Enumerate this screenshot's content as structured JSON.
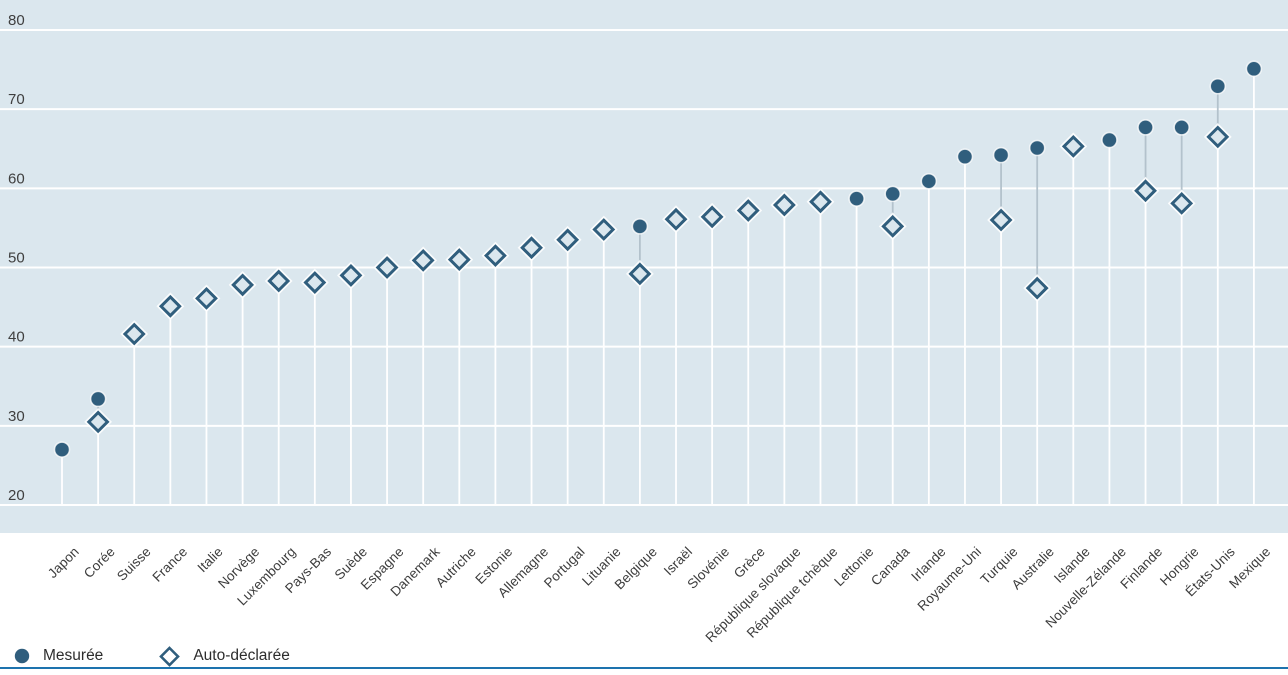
{
  "colors": {
    "marker": "#305e7d",
    "plot_background": "#dbe7ee",
    "gridline": "#ffffff",
    "connector": "#b3c2cc",
    "axis_text": "#3f3f3f",
    "bottom_rule": "#1d73ae"
  },
  "legend": {
    "measured_label": "Mesurée",
    "self_reported_label": "Auto-déclarée"
  },
  "chart_data": {
    "type": "scatter",
    "ylim": [
      20,
      80
    ],
    "yticks": [
      20,
      30,
      40,
      50,
      60,
      70,
      80
    ],
    "grid": true,
    "legend_position": "bottom-left",
    "categories": [
      "Japon",
      "Corée",
      "Suisse",
      "France",
      "Italie",
      "Norvège",
      "Luxembourg",
      "Pays-Bas",
      "Suède",
      "Espagne",
      "Danemark",
      "Autriche",
      "Estonie",
      "Allemagne",
      "Portugal",
      "Lituanie",
      "Belgique",
      "Israël",
      "Slovénie",
      "Grèce",
      "République slovaque",
      "République tchèque",
      "Lettonie",
      "Canada",
      "Irlande",
      "Royaume-Uni",
      "Turquie",
      "Australie",
      "Islande",
      "Nouvelle-Zélande",
      "Finlande",
      "Hongrie",
      "États-Unis",
      "Mexique"
    ],
    "series": [
      {
        "name": "Mesurée",
        "marker": "filled-circle",
        "values": [
          27.0,
          33.4,
          null,
          null,
          null,
          null,
          null,
          null,
          null,
          null,
          null,
          null,
          null,
          null,
          null,
          null,
          55.2,
          null,
          null,
          null,
          null,
          null,
          58.7,
          59.3,
          60.9,
          64.0,
          64.2,
          65.1,
          null,
          66.1,
          67.7,
          67.7,
          72.9,
          75.1
        ]
      },
      {
        "name": "Auto-déclarée",
        "marker": "open-diamond",
        "values": [
          null,
          30.5,
          41.6,
          45.1,
          46.1,
          47.8,
          48.3,
          48.1,
          49.0,
          50.0,
          50.9,
          51.0,
          51.5,
          52.5,
          53.5,
          54.8,
          49.2,
          56.1,
          56.4,
          57.2,
          57.9,
          58.3,
          null,
          55.2,
          null,
          null,
          56.0,
          47.4,
          65.3,
          null,
          59.7,
          58.1,
          66.5,
          null
        ]
      }
    ]
  }
}
